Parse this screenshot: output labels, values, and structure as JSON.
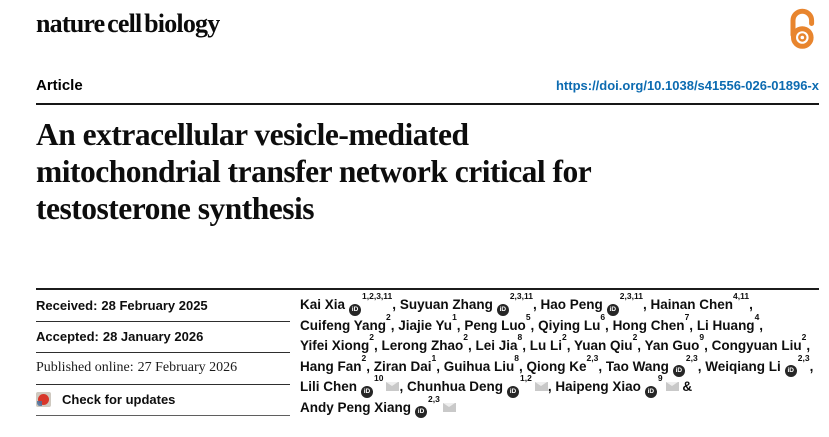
{
  "journal": {
    "name": "nature cell biology"
  },
  "article": {
    "type_label": "Article",
    "doi": "https://doi.org/10.1038/s41556-026-01896-x"
  },
  "title_lines": [
    "An extracellular vesicle-mediated",
    "mitochondrial transfer network critical for",
    "testosterone synthesis"
  ],
  "info": {
    "received": {
      "label": "Received:",
      "value": "28 February 2025"
    },
    "accepted": {
      "label": "Accepted:",
      "value": "28 January 2026"
    },
    "published": {
      "label": "Published online:",
      "value": "27 February 2026"
    },
    "check_updates_label": "Check for updates"
  },
  "authors": [
    {
      "name": "Kai Xia",
      "orcid": true,
      "sup": "1,2,3,11",
      "mail": false,
      "sep": ", "
    },
    {
      "name": "Suyuan Zhang",
      "orcid": true,
      "sup": "2,3,11",
      "mail": false,
      "sep": ", "
    },
    {
      "name": "Hao Peng",
      "orcid": true,
      "sup": "2,3,11",
      "mail": false,
      "sep": ", "
    },
    {
      "name": "Hainan Chen",
      "orcid": false,
      "sup": "4,11",
      "mail": false,
      "sep": ",",
      "br": true
    },
    {
      "name": "Cuifeng Yang",
      "orcid": false,
      "sup": "2",
      "mail": false,
      "sep": ", "
    },
    {
      "name": "Jiajie Yu",
      "orcid": false,
      "sup": "1",
      "mail": false,
      "sep": ", "
    },
    {
      "name": "Peng Luo",
      "orcid": false,
      "sup": "5",
      "mail": false,
      "sep": ", "
    },
    {
      "name": "Qiying Lu",
      "orcid": false,
      "sup": "6",
      "mail": false,
      "sep": ", "
    },
    {
      "name": "Hong Chen",
      "orcid": false,
      "sup": "7",
      "mail": false,
      "sep": ", "
    },
    {
      "name": "Li Huang",
      "orcid": false,
      "sup": "4",
      "mail": false,
      "sep": ",",
      "br": true
    },
    {
      "name": "Yifei Xiong",
      "orcid": false,
      "sup": "2",
      "mail": false,
      "sep": ", "
    },
    {
      "name": "Lerong Zhao",
      "orcid": false,
      "sup": "2",
      "mail": false,
      "sep": ", "
    },
    {
      "name": "Lei Jia",
      "orcid": false,
      "sup": "8",
      "mail": false,
      "sep": ", "
    },
    {
      "name": "Lu Li",
      "orcid": false,
      "sup": "2",
      "mail": false,
      "sep": ", "
    },
    {
      "name": "Yuan Qiu",
      "orcid": false,
      "sup": "2",
      "mail": false,
      "sep": ", "
    },
    {
      "name": "Yan Guo",
      "orcid": false,
      "sup": "9",
      "mail": false,
      "sep": ", "
    },
    {
      "name": "Congyuan Liu",
      "orcid": false,
      "sup": "2",
      "mail": false,
      "sep": ",",
      "br": true
    },
    {
      "name": "Hang Fan",
      "orcid": false,
      "sup": "2",
      "mail": false,
      "sep": ", "
    },
    {
      "name": "Ziran Dai",
      "orcid": false,
      "sup": "1",
      "mail": false,
      "sep": ", "
    },
    {
      "name": "Guihua Liu",
      "orcid": false,
      "sup": "8",
      "mail": false,
      "sep": ", "
    },
    {
      "name": "Qiong Ke",
      "orcid": false,
      "sup": "2,3",
      "mail": false,
      "sep": ", "
    },
    {
      "name": "Tao Wang",
      "orcid": true,
      "sup": "2,3",
      "mail": false,
      "sep": ", "
    },
    {
      "name": "Weiqiang Li",
      "orcid": true,
      "sup": "2,3",
      "mail": false,
      "sep": ",",
      "br": true
    },
    {
      "name": "Lili Chen",
      "orcid": true,
      "sup": "10",
      "mail": true,
      "sep": ", "
    },
    {
      "name": "Chunhua Deng",
      "orcid": true,
      "sup": "1,2",
      "mail": true,
      "sep": ", "
    },
    {
      "name": "Haipeng Xiao",
      "orcid": true,
      "sup": "9",
      "mail": true,
      "sep": " &",
      "br": true
    },
    {
      "name": "Andy Peng Xiang",
      "orcid": true,
      "sup": "2,3",
      "mail": true,
      "sep": ""
    }
  ],
  "icons": {
    "open_access": "open-access-lock-icon",
    "crossmark": "crossmark-icon",
    "orcid": "orcid-id-icon",
    "orcid_label": "iD",
    "email": "envelope-icon"
  },
  "colors": {
    "doi_link": "#0c6bb1",
    "open_access_orange": "#e8852e",
    "text_black": "#111111",
    "envelope_gray": "#c9c9c9",
    "crossmark_red": "#d8362a"
  }
}
